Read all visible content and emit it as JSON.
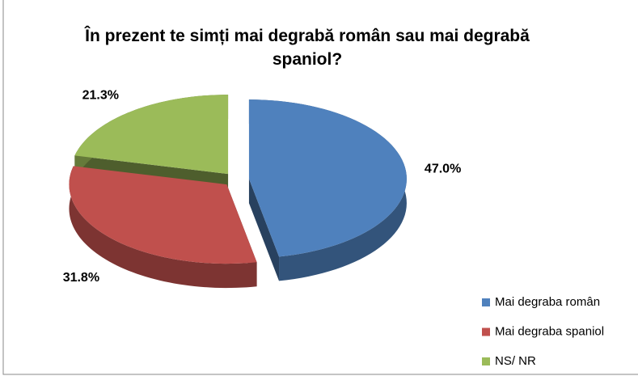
{
  "chart_data": {
    "type": "pie3d",
    "title": "În prezent te simți mai degrabă român sau mai degrabă spaniol?",
    "categories": [
      "Mai degraba român",
      "Mai degraba spaniol",
      "NS/ NR"
    ],
    "values": [
      47.0,
      31.8,
      21.3
    ],
    "value_labels": [
      "47.0%",
      "31.8%",
      "21.3%"
    ],
    "colors": [
      "#4f81bd",
      "#c0504d",
      "#9bbb59"
    ],
    "legend": "right-bottom"
  }
}
